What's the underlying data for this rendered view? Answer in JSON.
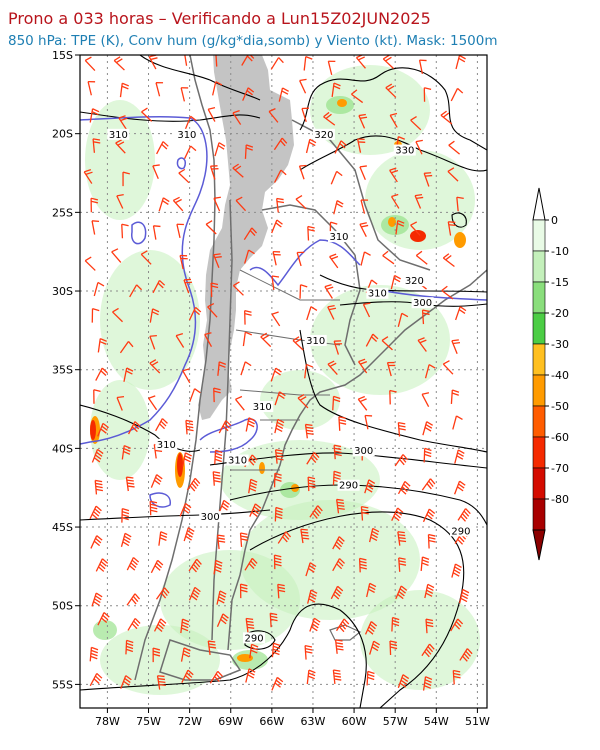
{
  "header": {
    "title": "Prono a 033 horas – Verificando a Lun15Z02JUN2025",
    "subtitle": "850 hPa: TPE (K), Conv hum (g/kg*dia,somb) y Viento (kt). Mask: 1500m"
  },
  "map": {
    "lat_range": [
      -56.5,
      -15
    ],
    "lon_range": [
      -80,
      -50.3
    ],
    "lat_labels": [
      "15S",
      "20S",
      "25S",
      "30S",
      "35S",
      "40S",
      "45S",
      "50S",
      "55S"
    ],
    "lat_values": [
      -15,
      -20,
      -25,
      -30,
      -35,
      -40,
      -45,
      -50,
      -55
    ],
    "lon_labels": [
      "78W",
      "75W",
      "72W",
      "69W",
      "66W",
      "63W",
      "60W",
      "57W",
      "54W",
      "51W"
    ],
    "lon_values": [
      -78,
      -75,
      -72,
      -69,
      -66,
      -63,
      -60,
      -57,
      -54,
      -51
    ],
    "mask_label": "1500m",
    "colors": {
      "mask": "#c4c4c4",
      "coast": "#6e6e6e",
      "grid": "#8c8c8c",
      "tpe_contour": "#000000",
      "tpe_310_contour": "#5b5bd6",
      "wind_barb": "#ff3a12"
    }
  },
  "contour_labels": [
    {
      "text": "310",
      "lat": -20.2,
      "lon": -77.2,
      "color": "blue"
    },
    {
      "text": "310",
      "lat": -20.2,
      "lon": -72.2,
      "color": "black"
    },
    {
      "text": "320",
      "lat": -20.2,
      "lon": -62.2,
      "color": "black"
    },
    {
      "text": "330",
      "lat": -21.2,
      "lon": -56.3,
      "color": "black"
    },
    {
      "text": "310",
      "lat": -26.7,
      "lon": -61.1,
      "color": "blue"
    },
    {
      "text": "320",
      "lat": -29.5,
      "lon": -55.6,
      "color": "black"
    },
    {
      "text": "310",
      "lat": -30.3,
      "lon": -58.3,
      "color": "black"
    },
    {
      "text": "300",
      "lat": -30.9,
      "lon": -55.0,
      "color": "black"
    },
    {
      "text": "310",
      "lat": -33.3,
      "lon": -62.8,
      "color": "black"
    },
    {
      "text": "310",
      "lat": -37.5,
      "lon": -66.7,
      "color": "black"
    },
    {
      "text": "310",
      "lat": -39.9,
      "lon": -73.7,
      "color": "black"
    },
    {
      "text": "310",
      "lat": -40.9,
      "lon": -68.5,
      "color": "blue"
    },
    {
      "text": "300",
      "lat": -40.3,
      "lon": -59.3,
      "color": "black"
    },
    {
      "text": "290",
      "lat": -42.5,
      "lon": -60.4,
      "color": "black"
    },
    {
      "text": "300",
      "lat": -44.5,
      "lon": -70.5,
      "color": "black"
    },
    {
      "text": "290",
      "lat": -45.4,
      "lon": -52.2,
      "color": "black"
    },
    {
      "text": "290",
      "lat": -52.2,
      "lon": -67.3,
      "color": "black"
    }
  ],
  "colorbar": {
    "labels": [
      "0",
      "-10",
      "-15",
      "-20",
      "-30",
      "-40",
      "-50",
      "-60",
      "-70",
      "-80"
    ],
    "colors": [
      "#e9fbe6",
      "#c4f0bb",
      "#8ade7c",
      "#4ccd45",
      "#ffc020",
      "#ff9b00",
      "#ff5c00",
      "#f52a00",
      "#d40b00",
      "#a80000"
    ]
  }
}
